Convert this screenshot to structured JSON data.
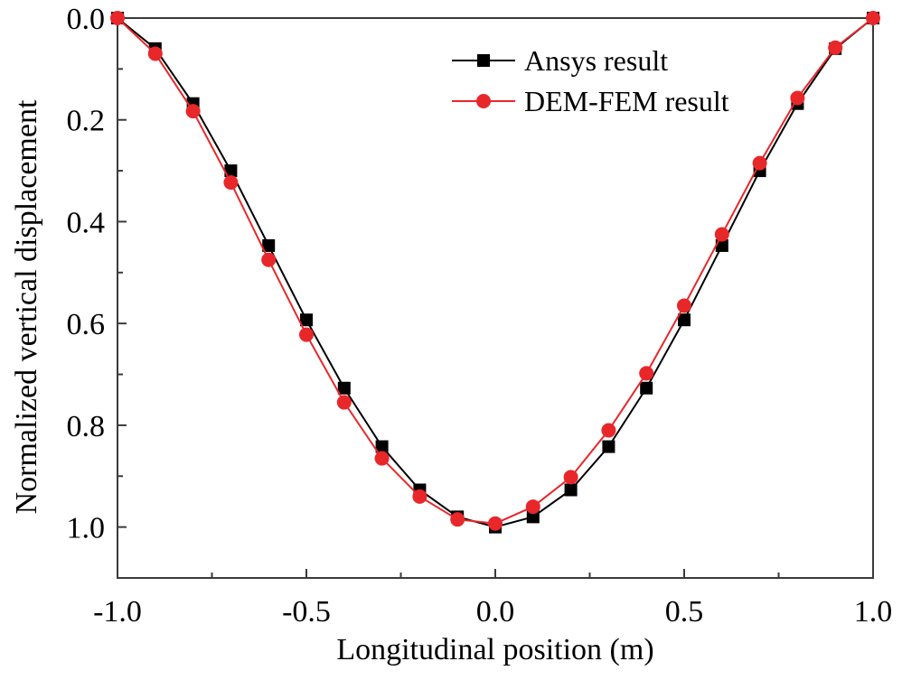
{
  "chart_data": {
    "type": "line",
    "title": "",
    "xlabel": "Longitudinal position (m)",
    "ylabel": "Normalized vertical displacement",
    "xlim": [
      -1.0,
      1.0
    ],
    "ylim": [
      0.0,
      1.1
    ],
    "y_inverted": true,
    "x_ticks": [
      -1.0,
      -0.5,
      0.0,
      0.5,
      1.0
    ],
    "x_tick_labels": [
      "-1.0",
      "-0.5",
      "0.0",
      "0.5",
      "1.0"
    ],
    "y_ticks": [
      0.0,
      0.2,
      0.4,
      0.6,
      0.8,
      1.0
    ],
    "y_tick_labels": [
      "0.0",
      "0.2",
      "0.4",
      "0.6",
      "0.8",
      "1.0"
    ],
    "grid": false,
    "legend_position": "top-right",
    "series": [
      {
        "name": "Ansys result",
        "color": "#000000",
        "marker": "square",
        "x": [
          -1.0,
          -0.9,
          -0.8,
          -0.7,
          -0.6,
          -0.5,
          -0.4,
          -0.3,
          -0.2,
          -0.1,
          0.0,
          0.1,
          0.2,
          0.3,
          0.4,
          0.5,
          0.6,
          0.7,
          0.8,
          0.9,
          1.0
        ],
        "values": [
          0.0,
          0.06,
          0.168,
          0.3,
          0.447,
          0.593,
          0.727,
          0.842,
          0.927,
          0.98,
          1.0,
          0.98,
          0.927,
          0.842,
          0.727,
          0.593,
          0.447,
          0.3,
          0.168,
          0.06,
          0.0
        ]
      },
      {
        "name": "DEM-FEM result",
        "color": "#e8272a",
        "marker": "circle",
        "x": [
          -1.0,
          -0.9,
          -0.8,
          -0.7,
          -0.6,
          -0.5,
          -0.4,
          -0.3,
          -0.2,
          -0.1,
          0.0,
          0.1,
          0.2,
          0.3,
          0.4,
          0.5,
          0.6,
          0.7,
          0.8,
          0.9,
          1.0
        ],
        "values": [
          0.0,
          0.07,
          0.183,
          0.323,
          0.475,
          0.622,
          0.755,
          0.865,
          0.94,
          0.985,
          0.993,
          0.96,
          0.902,
          0.81,
          0.698,
          0.565,
          0.425,
          0.285,
          0.157,
          0.058,
          0.0
        ]
      }
    ]
  }
}
